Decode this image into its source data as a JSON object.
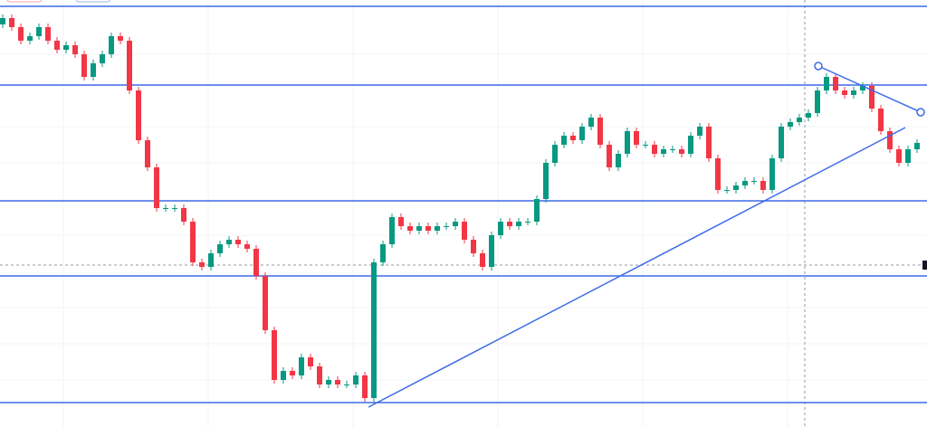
{
  "chart_data": {
    "type": "candlestick",
    "ylim": [
      0,
      472
    ],
    "up_color": "#089981",
    "down_color": "#f23645",
    "level_color": "#3d6ae8",
    "levels": [
      465,
      378,
      250,
      167,
      27
    ],
    "open": [
      445,
      452,
      442,
      427,
      432,
      442,
      427,
      417,
      422,
      412,
      387,
      402,
      412,
      432,
      427,
      372,
      317,
      287,
      242,
      242,
      242,
      227,
      182,
      177,
      192,
      202,
      207,
      202,
      197,
      167,
      107,
      52,
      62,
      57,
      77,
      67,
      47,
      52,
      47,
      47,
      57,
      32,
      182,
      202,
      232,
      222,
      217,
      222,
      217,
      222,
      222,
      227,
      207,
      192,
      177,
      212,
      227,
      222,
      227,
      227,
      252,
      292,
      312,
      322,
      317,
      332,
      342,
      312,
      287,
      302,
      327,
      312,
      312,
      302,
      307,
      307,
      302,
      322,
      332,
      297,
      262,
      262,
      267,
      272,
      272,
      262,
      297,
      332,
      337,
      342,
      347,
      372,
      387,
      372,
      367,
      372,
      377,
      352,
      327,
      307,
      292,
      307
    ],
    "high": [
      456,
      456,
      446,
      436,
      446,
      446,
      431,
      426,
      426,
      416,
      406,
      416,
      436,
      436,
      431,
      376,
      321,
      291,
      246,
      246,
      246,
      231,
      186,
      196,
      206,
      211,
      211,
      206,
      201,
      171,
      111,
      66,
      66,
      81,
      81,
      71,
      56,
      56,
      51,
      61,
      61,
      186,
      206,
      236,
      236,
      226,
      226,
      226,
      226,
      226,
      231,
      231,
      211,
      196,
      216,
      231,
      231,
      231,
      231,
      256,
      296,
      316,
      326,
      326,
      336,
      346,
      346,
      316,
      306,
      331,
      331,
      316,
      316,
      311,
      311,
      311,
      326,
      336,
      336,
      301,
      266,
      271,
      276,
      276,
      276,
      301,
      336,
      341,
      346,
      351,
      376,
      391,
      391,
      376,
      376,
      381,
      381,
      356,
      331,
      311,
      311,
      318
    ],
    "low": [
      441,
      438,
      423,
      423,
      428,
      423,
      413,
      413,
      408,
      383,
      383,
      398,
      408,
      423,
      368,
      313,
      283,
      238,
      238,
      238,
      223,
      178,
      173,
      173,
      188,
      198,
      198,
      193,
      163,
      103,
      48,
      48,
      53,
      53,
      63,
      43,
      43,
      43,
      43,
      43,
      28,
      28,
      178,
      198,
      218,
      213,
      213,
      213,
      213,
      218,
      218,
      203,
      188,
      173,
      173,
      208,
      218,
      218,
      223,
      223,
      248,
      288,
      308,
      313,
      313,
      328,
      308,
      283,
      283,
      298,
      308,
      308,
      298,
      298,
      303,
      298,
      298,
      318,
      293,
      258,
      258,
      258,
      263,
      268,
      258,
      258,
      293,
      328,
      333,
      338,
      343,
      368,
      368,
      363,
      363,
      368,
      348,
      323,
      303,
      288,
      288,
      303
    ],
    "close": [
      452,
      442,
      427,
      432,
      442,
      427,
      417,
      422,
      412,
      387,
      402,
      412,
      432,
      427,
      372,
      317,
      287,
      242,
      242,
      242,
      227,
      182,
      177,
      192,
      202,
      207,
      202,
      197,
      167,
      107,
      52,
      62,
      57,
      77,
      67,
      47,
      52,
      47,
      47,
      57,
      32,
      182,
      202,
      232,
      222,
      217,
      222,
      217,
      222,
      222,
      227,
      207,
      192,
      177,
      212,
      227,
      222,
      227,
      227,
      252,
      292,
      312,
      322,
      317,
      332,
      342,
      312,
      287,
      302,
      327,
      312,
      312,
      302,
      307,
      307,
      302,
      322,
      332,
      297,
      262,
      262,
      267,
      272,
      272,
      262,
      297,
      332,
      337,
      342,
      347,
      372,
      387,
      372,
      367,
      372,
      377,
      352,
      327,
      307,
      292,
      307,
      314
    ]
  }
}
